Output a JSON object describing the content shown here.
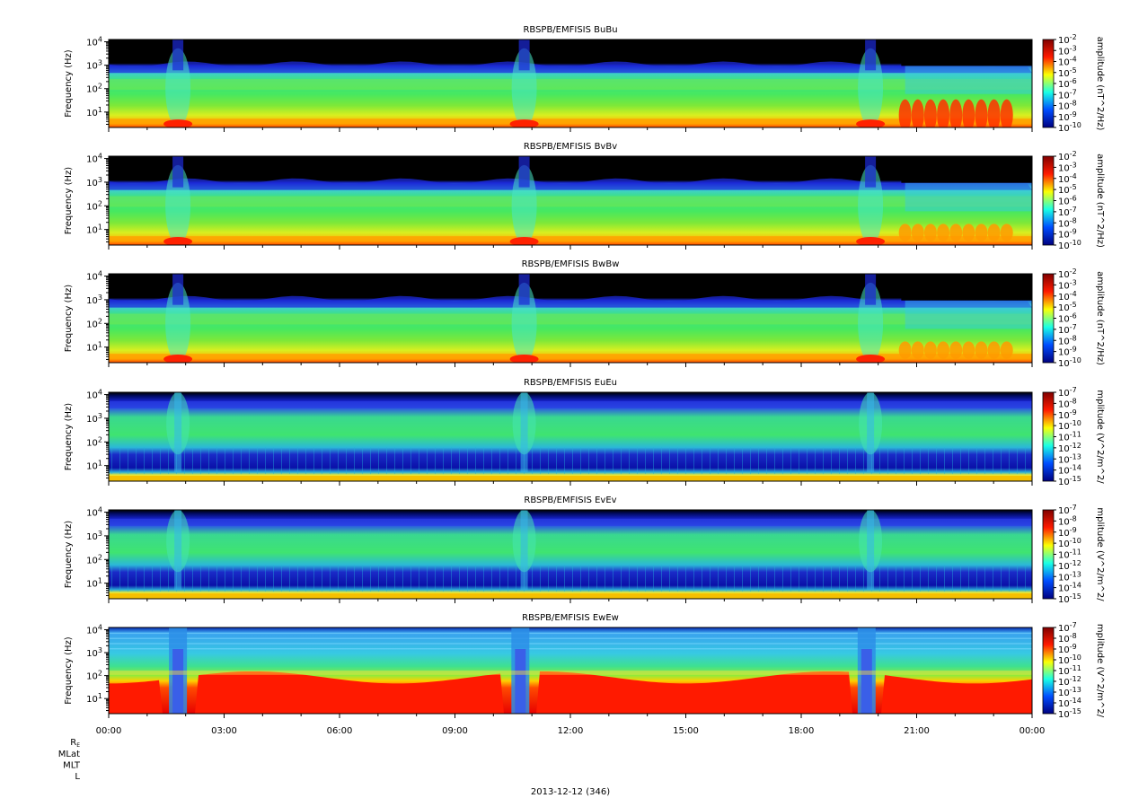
{
  "chart_data": {
    "type": "heatmap",
    "footer_date": "2013-12-12 (346)",
    "x_tick_labels": [
      "00:00",
      "03:00",
      "06:00",
      "09:00",
      "12:00",
      "15:00",
      "18:00",
      "21:00",
      "00:00"
    ],
    "ephemeris_labels": [
      "R",
      "E",
      "MLat",
      "MLT",
      "L"
    ],
    "y_tick_labels": [
      {
        "base": "10",
        "exp": "1"
      },
      {
        "base": "10",
        "exp": "2"
      },
      {
        "base": "10",
        "exp": "3"
      },
      {
        "base": "10",
        "exp": "4"
      }
    ],
    "ylabel": "Frequency (Hz)",
    "panels": [
      {
        "title": "RBSPB/EMFISIS  BuBu",
        "cbar_label": "amplitude (nT^2/Hz)",
        "cbar_ticks": [
          {
            "base": "10",
            "exp": "-2"
          },
          {
            "base": "10",
            "exp": "-3"
          },
          {
            "base": "10",
            "exp": "-4"
          },
          {
            "base": "10",
            "exp": "-5"
          },
          {
            "base": "10",
            "exp": "-6"
          },
          {
            "base": "10",
            "exp": "-7"
          },
          {
            "base": "10",
            "exp": "-8"
          },
          {
            "base": "10",
            "exp": "-9"
          },
          {
            "base": "10",
            "exp": "-10"
          }
        ]
      },
      {
        "title": "RBSPB/EMFISIS  BvBv",
        "cbar_label": "amplitude (nT^2/Hz)",
        "cbar_ticks": [
          {
            "base": "10",
            "exp": "-2"
          },
          {
            "base": "10",
            "exp": "-3"
          },
          {
            "base": "10",
            "exp": "-4"
          },
          {
            "base": "10",
            "exp": "-5"
          },
          {
            "base": "10",
            "exp": "-6"
          },
          {
            "base": "10",
            "exp": "-7"
          },
          {
            "base": "10",
            "exp": "-8"
          },
          {
            "base": "10",
            "exp": "-9"
          },
          {
            "base": "10",
            "exp": "-10"
          }
        ]
      },
      {
        "title": "RBSPB/EMFISIS  BwBw",
        "cbar_label": "amplitude (nT^2/Hz)",
        "cbar_ticks": [
          {
            "base": "10",
            "exp": "-2"
          },
          {
            "base": "10",
            "exp": "-3"
          },
          {
            "base": "10",
            "exp": "-4"
          },
          {
            "base": "10",
            "exp": "-5"
          },
          {
            "base": "10",
            "exp": "-6"
          },
          {
            "base": "10",
            "exp": "-7"
          },
          {
            "base": "10",
            "exp": "-8"
          },
          {
            "base": "10",
            "exp": "-9"
          },
          {
            "base": "10",
            "exp": "-10"
          }
        ]
      },
      {
        "title": "RBSPB/EMFISIS  EuEu",
        "cbar_label": "mplitude (V^2/m^2/",
        "cbar_ticks": [
          {
            "base": "10",
            "exp": "-7"
          },
          {
            "base": "10",
            "exp": "-8"
          },
          {
            "base": "10",
            "exp": "-9"
          },
          {
            "base": "10",
            "exp": "-10"
          },
          {
            "base": "10",
            "exp": "-11"
          },
          {
            "base": "10",
            "exp": "-12"
          },
          {
            "base": "10",
            "exp": "-13"
          },
          {
            "base": "10",
            "exp": "-14"
          },
          {
            "base": "10",
            "exp": "-15"
          }
        ]
      },
      {
        "title": "RBSPB/EMFISIS  EvEv",
        "cbar_label": "mplitude (V^2/m^2/",
        "cbar_ticks": [
          {
            "base": "10",
            "exp": "-7"
          },
          {
            "base": "10",
            "exp": "-8"
          },
          {
            "base": "10",
            "exp": "-9"
          },
          {
            "base": "10",
            "exp": "-10"
          },
          {
            "base": "10",
            "exp": "-11"
          },
          {
            "base": "10",
            "exp": "-12"
          },
          {
            "base": "10",
            "exp": "-13"
          },
          {
            "base": "10",
            "exp": "-14"
          },
          {
            "base": "10",
            "exp": "-15"
          }
        ]
      },
      {
        "title": "RBSPB/EMFISIS  EwEw",
        "cbar_label": "mplitude (V^2/m^2/",
        "cbar_ticks": [
          {
            "base": "10",
            "exp": "-7"
          },
          {
            "base": "10",
            "exp": "-8"
          },
          {
            "base": "10",
            "exp": "-9"
          },
          {
            "base": "10",
            "exp": "-10"
          },
          {
            "base": "10",
            "exp": "-11"
          },
          {
            "base": "10",
            "exp": "-12"
          },
          {
            "base": "10",
            "exp": "-13"
          },
          {
            "base": "10",
            "exp": "-14"
          },
          {
            "base": "10",
            "exp": "-15"
          }
        ]
      }
    ]
  }
}
